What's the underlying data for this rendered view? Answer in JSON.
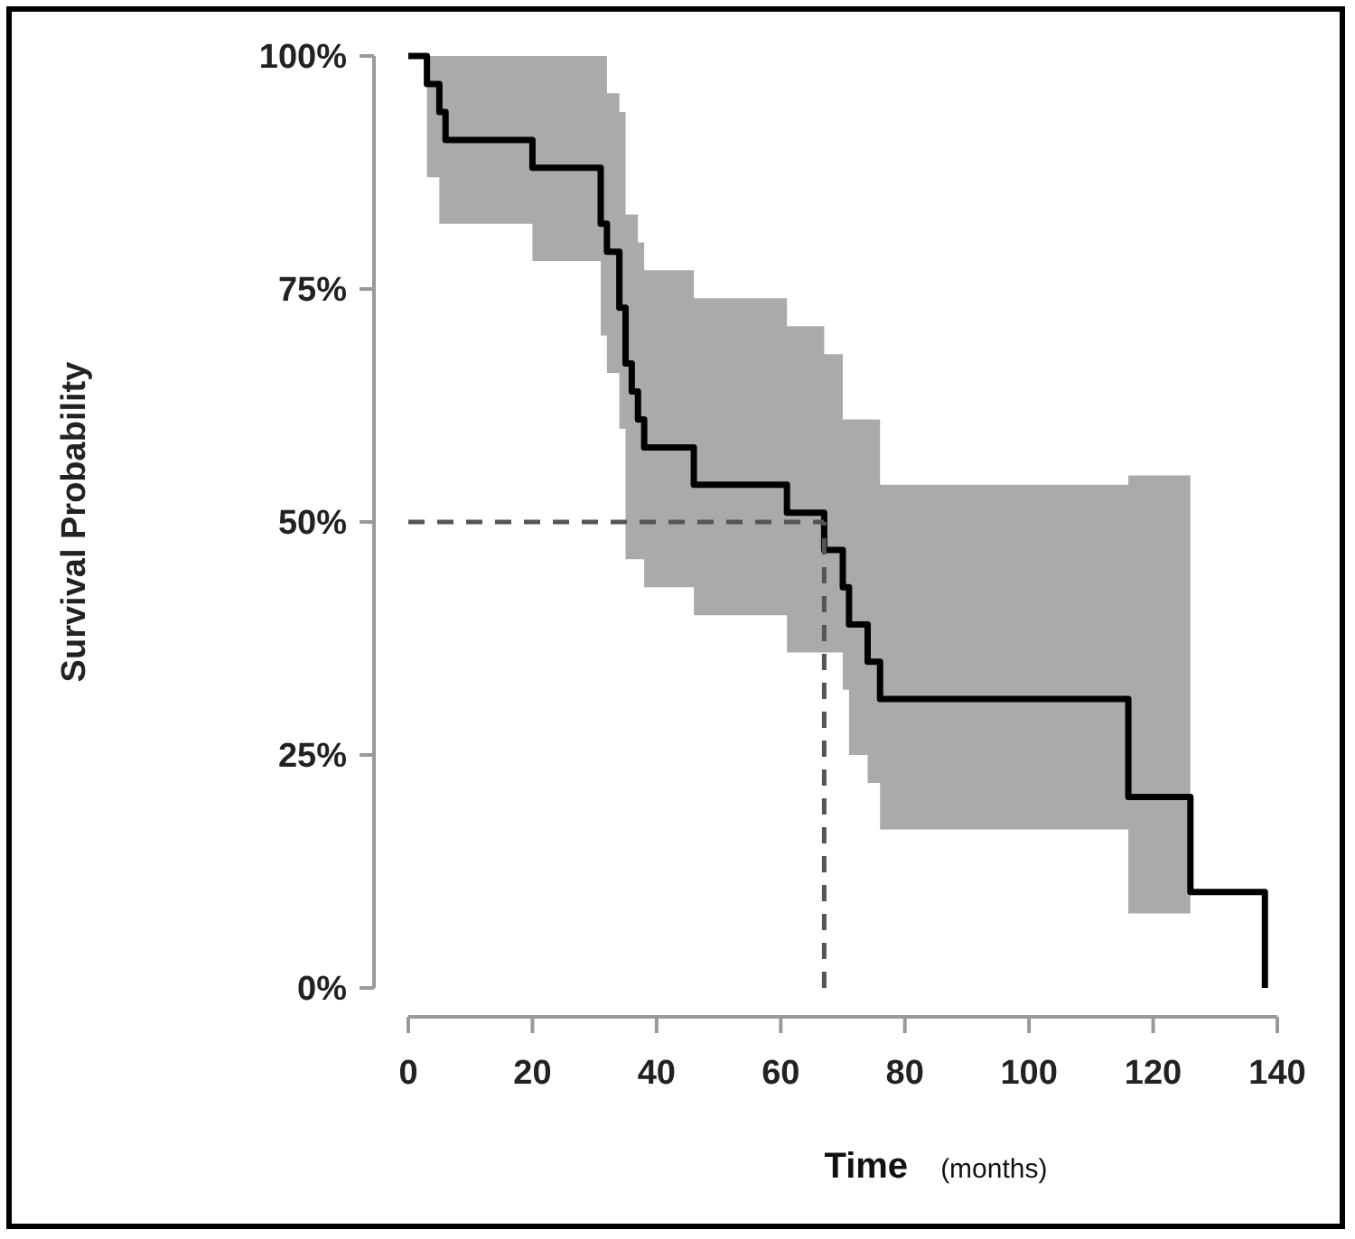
{
  "chart_data": {
    "type": "step",
    "xlabel": "Time (months)",
    "ylabel": "Survival Probability",
    "x": [
      0,
      3,
      5,
      6,
      20,
      31,
      32,
      33,
      34,
      35,
      36,
      37,
      38,
      46,
      61,
      67,
      70,
      71,
      74,
      76,
      116,
      126,
      138
    ],
    "series": [
      {
        "color": "#000000",
        "values": [
          100,
          97,
          94,
          91,
          88,
          82,
          79,
          79,
          73,
          67,
          64,
          61,
          58,
          54,
          51,
          47,
          43,
          39,
          35,
          31,
          20.5,
          10.3,
          0
        ],
        "upper": [
          100,
          100,
          100,
          100,
          100,
          100,
          96,
          96,
          94,
          83,
          83,
          80,
          77,
          74,
          71,
          68,
          61,
          61,
          61,
          54,
          55,
          55,
          null
        ],
        "lower": [
          100,
          87,
          82,
          82,
          78,
          70,
          66,
          66,
          60,
          46,
          46,
          46,
          43,
          40,
          36,
          36,
          32,
          25,
          22,
          17,
          8,
          8,
          null
        ]
      }
    ],
    "xlim": [
      0,
      140
    ],
    "xticks": [
      0,
      20,
      40,
      60,
      80,
      100,
      120,
      140
    ],
    "ylim": [
      0,
      100
    ],
    "yticks": [
      {
        "value": 0,
        "label": "0%"
      },
      {
        "value": 25,
        "label": "25%"
      },
      {
        "value": 50,
        "label": "50%"
      },
      {
        "value": 75,
        "label": "75%"
      },
      {
        "value": 100,
        "label": "100%"
      }
    ],
    "ref_lines": [
      {
        "axis": "y",
        "value": 50,
        "color": "#555555",
        "line_style": "dashed"
      },
      {
        "axis": "x",
        "value": 67,
        "color": "#555555",
        "line_style": "dashed"
      }
    ],
    "grid": false
  }
}
